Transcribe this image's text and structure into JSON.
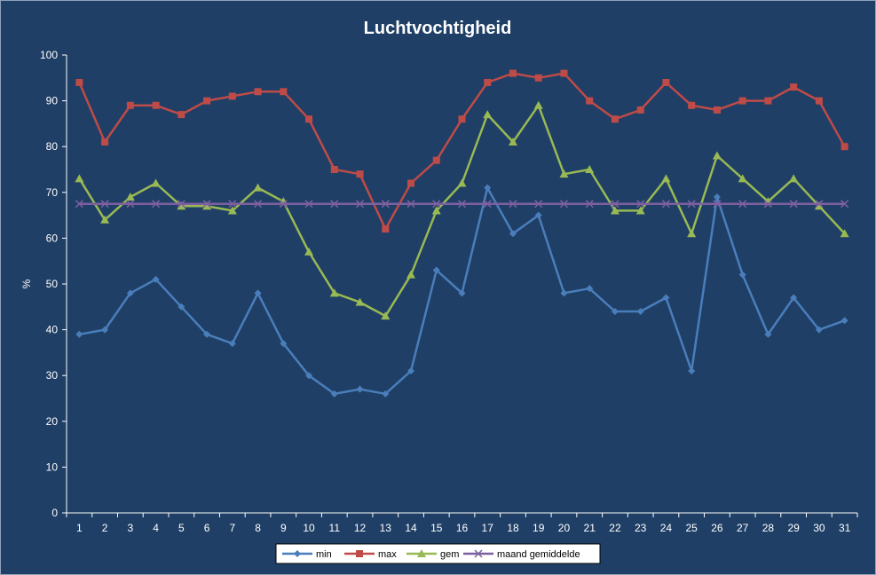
{
  "chart_data": {
    "type": "line",
    "title": "Luchtvochtigheid",
    "xlabel": "",
    "ylabel": "%",
    "ylim": [
      0,
      100
    ],
    "yticks": [
      0,
      10,
      20,
      30,
      40,
      50,
      60,
      70,
      80,
      90,
      100
    ],
    "x": [
      1,
      2,
      3,
      4,
      5,
      6,
      7,
      8,
      9,
      10,
      11,
      12,
      13,
      14,
      15,
      16,
      17,
      18,
      19,
      20,
      21,
      22,
      23,
      24,
      25,
      26,
      27,
      28,
      29,
      30,
      31
    ],
    "grid": false,
    "legend_position": "bottom",
    "series": [
      {
        "name": "min",
        "color": "#4a7ebb",
        "marker": "diamond",
        "values": [
          39,
          40,
          48,
          51,
          45,
          39,
          37,
          48,
          37,
          30,
          26,
          27,
          26,
          31,
          53,
          48,
          71,
          61,
          65,
          48,
          49,
          44,
          44,
          47,
          31,
          69,
          52,
          39,
          47,
          40,
          42
        ]
      },
      {
        "name": "max",
        "color": "#be4b48",
        "marker": "square",
        "values": [
          94,
          81,
          89,
          89,
          87,
          90,
          91,
          92,
          92,
          86,
          75,
          74,
          62,
          72,
          77,
          86,
          94,
          96,
          95,
          96,
          90,
          86,
          88,
          94,
          89,
          88,
          90,
          90,
          93,
          90,
          80
        ]
      },
      {
        "name": "gem",
        "color": "#98b954",
        "marker": "triangle",
        "values": [
          73,
          64,
          69,
          72,
          67,
          67,
          66,
          71,
          68,
          57,
          48,
          46,
          43,
          52,
          66,
          72,
          87,
          81,
          89,
          74,
          75,
          66,
          66,
          73,
          61,
          78,
          73,
          68,
          73,
          67,
          61
        ]
      },
      {
        "name": "maand gemiddelde",
        "color": "#7d60a0",
        "marker": "x",
        "values": [
          67.5,
          67.5,
          67.5,
          67.5,
          67.5,
          67.5,
          67.5,
          67.5,
          67.5,
          67.5,
          67.5,
          67.5,
          67.5,
          67.5,
          67.5,
          67.5,
          67.5,
          67.5,
          67.5,
          67.5,
          67.5,
          67.5,
          67.5,
          67.5,
          67.5,
          67.5,
          67.5,
          67.5,
          67.5,
          67.5,
          67.5
        ]
      }
    ]
  }
}
